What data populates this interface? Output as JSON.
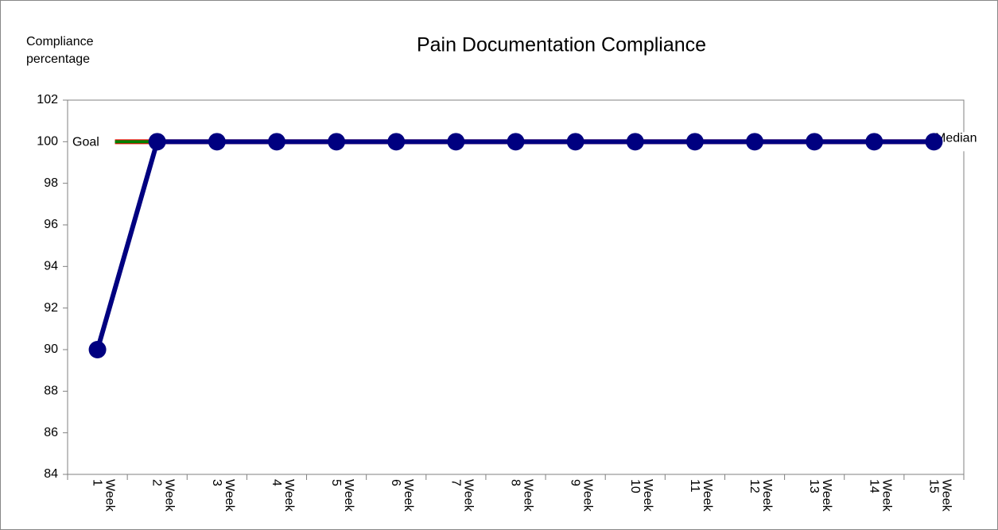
{
  "chart_data": {
    "type": "line",
    "title": "Pain Documentation Compliance",
    "ylabel": "Compliance percentage",
    "categories": [
      "Week 1",
      "Week 2",
      "Week 3",
      "Week 4",
      "Week 5",
      "Week 6",
      "Week 7",
      "Week 8",
      "Week 9",
      "Week 10",
      "Week 11",
      "Week 12",
      "Week 13",
      "Week 14",
      "Week 15"
    ],
    "series": [
      {
        "name": "Compliance",
        "color": "#000080",
        "values": [
          90,
          100,
          100,
          100,
          100,
          100,
          100,
          100,
          100,
          100,
          100,
          100,
          100,
          100,
          100
        ]
      }
    ],
    "goal": {
      "label": "Goal",
      "value": 100,
      "color": "#008000"
    },
    "median": {
      "label": "Median",
      "value": 100,
      "color": "#ff0000"
    },
    "ylim": [
      84,
      102
    ],
    "yticks": [
      84,
      86,
      88,
      90,
      92,
      94,
      96,
      98,
      100,
      102
    ]
  }
}
